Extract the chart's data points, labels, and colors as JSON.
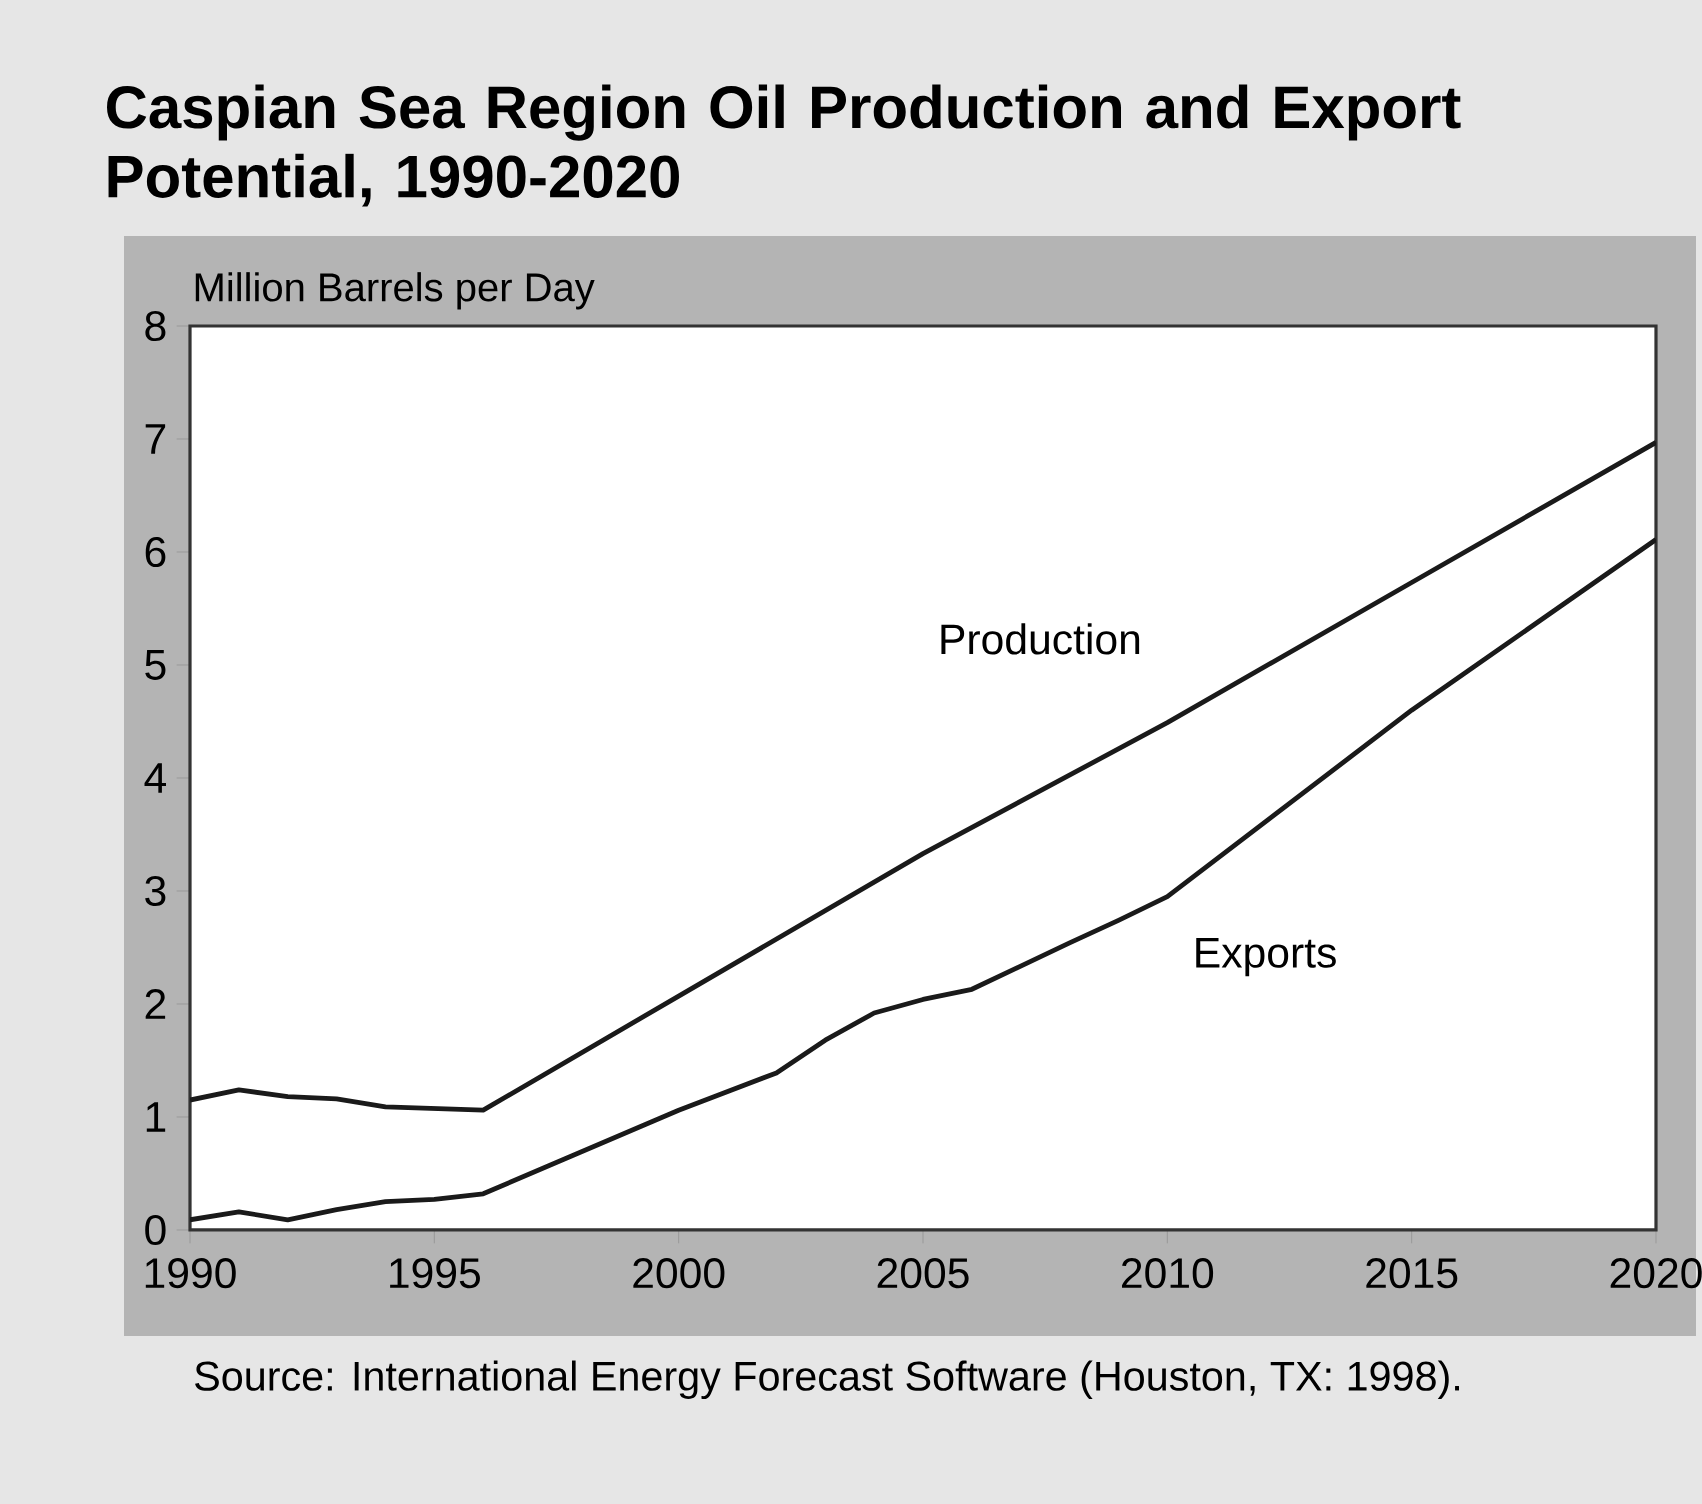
{
  "chart_data": {
    "type": "line",
    "title": "Caspian Sea Region Oil Production and Export Potential, 1990-2020",
    "ylabel": "Million Barrels per Day",
    "xlim": [
      1990,
      2020
    ],
    "xticks": [
      1990,
      1995,
      2000,
      2005,
      2010,
      2015,
      2020
    ],
    "ylim": [
      0,
      8
    ],
    "yticks": [
      0,
      1,
      2,
      3,
      4,
      5,
      6,
      7,
      8
    ],
    "marker": "none",
    "line_style": "solid",
    "series": [
      {
        "name": "Production",
        "color": "#1a1a1a",
        "x": [
          1990,
          1991,
          1992,
          1993,
          1994,
          1996,
          2000,
          2005,
          2010,
          2015,
          2020
        ],
        "values": [
          1.15,
          1.24,
          1.18,
          1.16,
          1.09,
          1.06,
          2.07,
          3.33,
          4.49,
          5.73,
          6.97
        ]
      },
      {
        "name": "Exports",
        "color": "#1a1a1a",
        "x": [
          1990,
          1991,
          1992,
          1993,
          1994,
          1995,
          1996,
          2000,
          2002,
          2003,
          2004,
          2005,
          2006,
          2008,
          2009,
          2010,
          2015,
          2020
        ],
        "values": [
          0.09,
          0.16,
          0.09,
          0.18,
          0.25,
          0.27,
          0.32,
          1.06,
          1.39,
          1.68,
          1.92,
          2.04,
          2.13,
          2.54,
          2.74,
          2.95,
          4.6,
          6.11
        ]
      }
    ],
    "annotations": [
      "Source: International Energy Forecast Software (Houston, TX: 1998)."
    ]
  }
}
